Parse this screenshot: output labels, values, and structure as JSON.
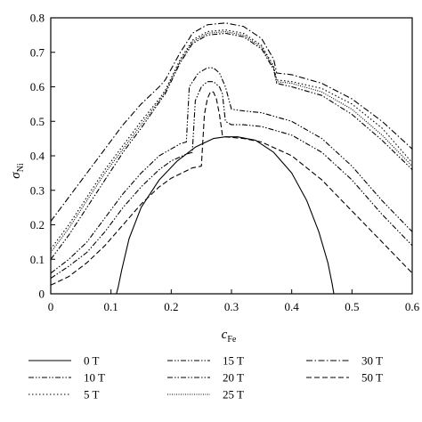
{
  "chart_data": {
    "type": "line",
    "xlabel_main": "c",
    "xlabel_sub": "Fe",
    "ylabel_main": "σ",
    "ylabel_sub": "Ni",
    "xlim": [
      0,
      0.6
    ],
    "ylim": [
      0,
      0.8
    ],
    "x_ticks": [
      "0",
      "0.1",
      "0.2",
      "0.3",
      "0.4",
      "0.5",
      "0.6"
    ],
    "y_ticks": [
      "0",
      "0.1",
      "0.2",
      "0.3",
      "0.4",
      "0.5",
      "0.6",
      "0.7",
      "0.8"
    ],
    "grid": false,
    "legend_position": "bottom",
    "series": [
      {
        "name": "0 T",
        "dash": "solid",
        "x": [
          0.109,
          0.112,
          0.118,
          0.13,
          0.15,
          0.18,
          0.21,
          0.24,
          0.27,
          0.29,
          0.31,
          0.34,
          0.37,
          0.4,
          0.425,
          0.445,
          0.46,
          0.467,
          0.47
        ],
        "y": [
          0,
          0.02,
          0.07,
          0.16,
          0.25,
          0.33,
          0.385,
          0.425,
          0.45,
          0.455,
          0.455,
          0.445,
          0.41,
          0.35,
          0.27,
          0.18,
          0.09,
          0.03,
          0
        ]
      },
      {
        "name": "5 T",
        "dash": "dot",
        "x": [
          0,
          0.03,
          0.06,
          0.09,
          0.12,
          0.15,
          0.18,
          0.19,
          0.215,
          0.23,
          0.235,
          0.26,
          0.29,
          0.32,
          0.35,
          0.37,
          0.375,
          0.4,
          0.45,
          0.5,
          0.55,
          0.6
        ],
        "y": [
          0.13,
          0.2,
          0.28,
          0.36,
          0.43,
          0.5,
          0.565,
          0.59,
          0.68,
          0.72,
          0.735,
          0.76,
          0.765,
          0.755,
          0.72,
          0.66,
          0.62,
          0.615,
          0.595,
          0.55,
          0.48,
          0.38
        ]
      },
      {
        "name": "10 T",
        "dash": "dashdotdot",
        "x": [
          0,
          0.03,
          0.06,
          0.09,
          0.12,
          0.15,
          0.18,
          0.19,
          0.215,
          0.23,
          0.235,
          0.26,
          0.29,
          0.32,
          0.35,
          0.37,
          0.375,
          0.4,
          0.45,
          0.5,
          0.55,
          0.6
        ],
        "y": [
          0.1,
          0.17,
          0.25,
          0.33,
          0.41,
          0.48,
          0.555,
          0.58,
          0.67,
          0.71,
          0.725,
          0.75,
          0.755,
          0.745,
          0.71,
          0.65,
          0.61,
          0.6,
          0.575,
          0.52,
          0.445,
          0.36
        ]
      },
      {
        "name": "15 T",
        "dash": "dashdotdot",
        "x": [
          0,
          0.03,
          0.06,
          0.09,
          0.12,
          0.15,
          0.18,
          0.2,
          0.215,
          0.225,
          0.23,
          0.245,
          0.26,
          0.27,
          0.28,
          0.29,
          0.3,
          0.32,
          0.35,
          0.4,
          0.45,
          0.5,
          0.55,
          0.6
        ],
        "y": [
          0.06,
          0.1,
          0.15,
          0.22,
          0.29,
          0.35,
          0.4,
          0.42,
          0.435,
          0.44,
          0.6,
          0.64,
          0.655,
          0.655,
          0.64,
          0.6,
          0.535,
          0.53,
          0.525,
          0.5,
          0.45,
          0.37,
          0.27,
          0.18
        ]
      },
      {
        "name": "20 T",
        "dash": "dashdotdot",
        "x": [
          0,
          0.03,
          0.06,
          0.09,
          0.12,
          0.15,
          0.18,
          0.2,
          0.225,
          0.235,
          0.24,
          0.25,
          0.26,
          0.27,
          0.28,
          0.285,
          0.29,
          0.3,
          0.32,
          0.35,
          0.4,
          0.45,
          0.5,
          0.55,
          0.6
        ],
        "y": [
          0.045,
          0.08,
          0.12,
          0.18,
          0.25,
          0.31,
          0.36,
          0.385,
          0.405,
          0.41,
          0.56,
          0.6,
          0.615,
          0.615,
          0.6,
          0.58,
          0.5,
          0.49,
          0.49,
          0.485,
          0.46,
          0.41,
          0.33,
          0.23,
          0.14
        ]
      },
      {
        "name": "25 T",
        "dash": "dense-dot",
        "x": [
          0,
          0.03,
          0.06,
          0.09,
          0.12,
          0.15,
          0.18,
          0.19,
          0.215,
          0.23,
          0.235,
          0.26,
          0.29,
          0.32,
          0.35,
          0.37,
          0.375,
          0.4,
          0.45,
          0.5,
          0.55,
          0.6
        ],
        "y": [
          0.12,
          0.19,
          0.27,
          0.35,
          0.42,
          0.49,
          0.56,
          0.585,
          0.675,
          0.715,
          0.73,
          0.755,
          0.76,
          0.75,
          0.715,
          0.655,
          0.615,
          0.61,
          0.585,
          0.535,
          0.46,
          0.37
        ]
      },
      {
        "name": "30 T",
        "dash": "dashdot",
        "x": [
          0,
          0.03,
          0.06,
          0.09,
          0.12,
          0.15,
          0.18,
          0.19,
          0.215,
          0.23,
          0.235,
          0.26,
          0.29,
          0.32,
          0.35,
          0.37,
          0.375,
          0.4,
          0.45,
          0.5,
          0.55,
          0.6
        ],
        "y": [
          0.21,
          0.28,
          0.35,
          0.42,
          0.49,
          0.55,
          0.6,
          0.62,
          0.7,
          0.74,
          0.755,
          0.78,
          0.785,
          0.775,
          0.74,
          0.68,
          0.64,
          0.635,
          0.61,
          0.565,
          0.5,
          0.42
        ]
      },
      {
        "name": "50 T",
        "dash": "dash",
        "x": [
          0,
          0.03,
          0.06,
          0.09,
          0.12,
          0.15,
          0.18,
          0.2,
          0.235,
          0.25,
          0.255,
          0.26,
          0.265,
          0.27,
          0.275,
          0.28,
          0.285,
          0.29,
          0.32,
          0.35,
          0.4,
          0.45,
          0.5,
          0.55,
          0.6
        ],
        "y": [
          0.025,
          0.05,
          0.09,
          0.14,
          0.2,
          0.26,
          0.31,
          0.335,
          0.365,
          0.37,
          0.52,
          0.565,
          0.585,
          0.585,
          0.565,
          0.52,
          0.46,
          0.455,
          0.45,
          0.44,
          0.4,
          0.33,
          0.24,
          0.15,
          0.06
        ]
      }
    ]
  }
}
